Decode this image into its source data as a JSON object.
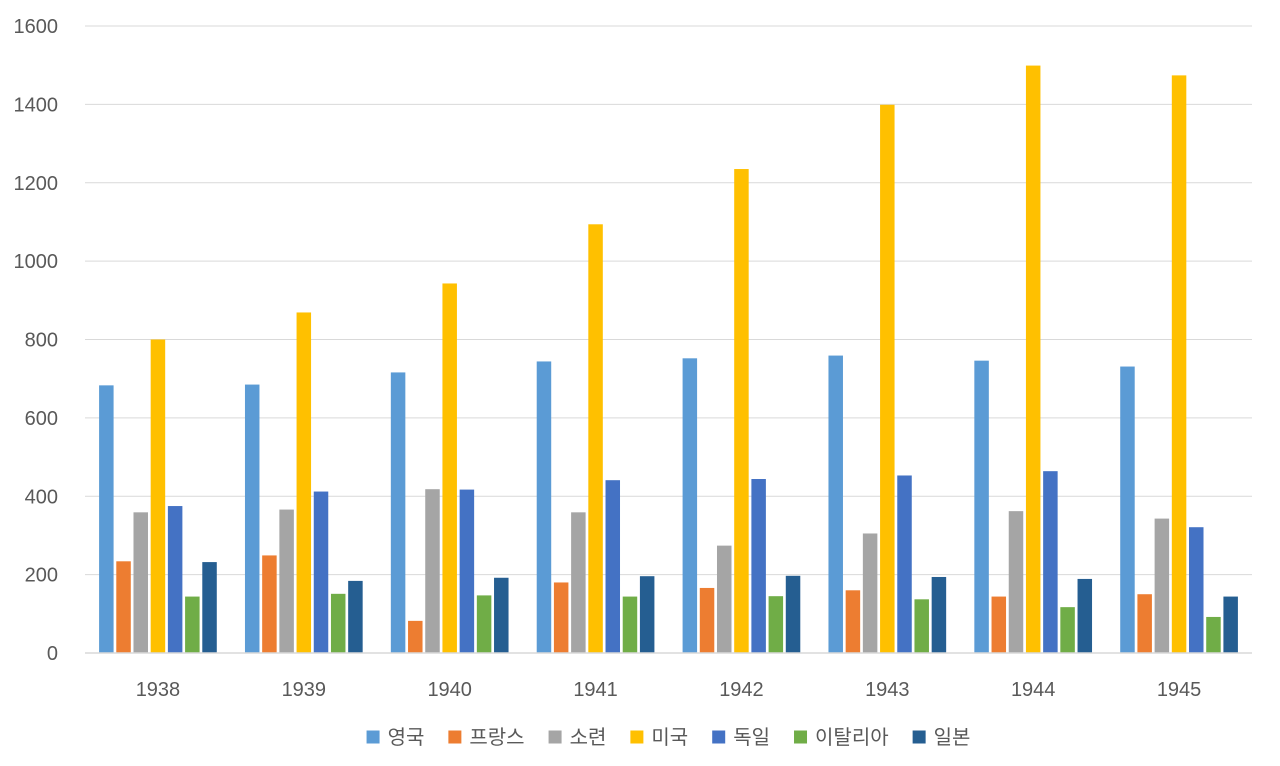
{
  "chart_data": {
    "type": "bar",
    "title": "",
    "xlabel": "",
    "ylabel": "",
    "ylim": [
      0,
      1600
    ],
    "y_ticks": [
      0,
      200,
      400,
      600,
      800,
      1000,
      1200,
      1400,
      1600
    ],
    "grid": true,
    "legend_position": "bottom",
    "categories": [
      "1938",
      "1939",
      "1940",
      "1941",
      "1942",
      "1943",
      "1944",
      "1945"
    ],
    "series": [
      {
        "name": "영국",
        "color": "#5B9BD5",
        "values": [
          683,
          685,
          716,
          744,
          752,
          759,
          746,
          731
        ]
      },
      {
        "name": "프랑스",
        "color": "#ED7D31",
        "values": [
          234,
          249,
          82,
          180,
          166,
          160,
          144,
          150
        ]
      },
      {
        "name": "소련",
        "color": "#A5A5A5",
        "values": [
          359,
          366,
          418,
          359,
          274,
          305,
          362,
          343
        ]
      },
      {
        "name": "미국",
        "color": "#FFC000",
        "values": [
          800,
          869,
          943,
          1094,
          1235,
          1399,
          1499,
          1474
        ]
      },
      {
        "name": "독일",
        "color": "#4472C4",
        "values": [
          375,
          412,
          417,
          441,
          444,
          453,
          464,
          321
        ]
      },
      {
        "name": "이탈리아",
        "color": "#70AD47",
        "values": [
          144,
          151,
          147,
          144,
          145,
          137,
          117,
          92
        ]
      },
      {
        "name": "일본",
        "color": "#255E91",
        "values": [
          232,
          184,
          192,
          196,
          197,
          194,
          189,
          144
        ]
      }
    ]
  }
}
